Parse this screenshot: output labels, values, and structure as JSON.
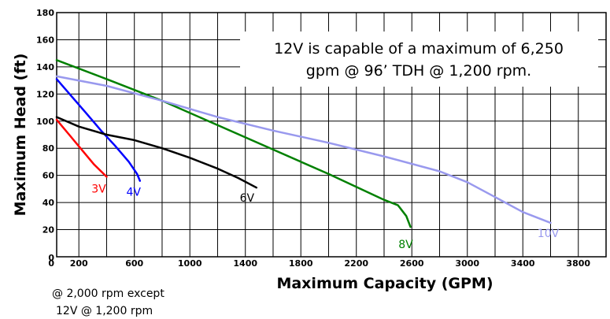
{
  "chart_data": {
    "type": "line",
    "title": "",
    "xlabel": "Maximum Capacity (GPM)",
    "ylabel": "Maximum Head (ft)",
    "xlim": [
      40,
      4000
    ],
    "ylim": [
      0,
      180
    ],
    "x_ticks": [
      "200",
      "600",
      "1000",
      "1400",
      "1800",
      "2200",
      "2600",
      "3000",
      "3400",
      "3800"
    ],
    "x_origin_label": "0",
    "y_ticks": [
      "180",
      "160",
      "140",
      "120",
      "100",
      "80",
      "60",
      "40",
      "20",
      "0"
    ],
    "grid": true,
    "annotation_lines": [
      "12V is capable of a maximum of 6,250",
      "gpm @ 96’ TDH @ 1,200 rpm."
    ],
    "footnote_lines": [
      "@ 2,000 rpm except",
      "12V @ 1,200 rpm"
    ],
    "series": [
      {
        "name": "3V",
        "color": "#ff0000",
        "x": [
          40,
          130,
          220,
          310,
          400
        ],
        "y": [
          101,
          90,
          79,
          68,
          59
        ]
      },
      {
        "name": "4V",
        "color": "#0000ff",
        "x": [
          40,
          150,
          260,
          360,
          460,
          560,
          620,
          640
        ],
        "y": [
          131,
          118,
          105,
          93,
          82,
          70,
          61,
          56
        ]
      },
      {
        "name": "6V",
        "color": "#000000",
        "x": [
          40,
          200,
          400,
          600,
          800,
          1000,
          1200,
          1350,
          1480
        ],
        "y": [
          103,
          96,
          90,
          86,
          80,
          73,
          65,
          58,
          51
        ]
      },
      {
        "name": "8V",
        "color": "#008000",
        "x": [
          40,
          400,
          800,
          1200,
          1600,
          2000,
          2400,
          2500,
          2560,
          2590
        ],
        "y": [
          145,
          131,
          115,
          97,
          79,
          61,
          42,
          38,
          30,
          22
        ]
      },
      {
        "name": "10V",
        "color": "#9999ee",
        "x": [
          40,
          400,
          800,
          1200,
          1600,
          2000,
          2400,
          2800,
          3000,
          3200,
          3400,
          3600
        ],
        "y": [
          133,
          126,
          115,
          103,
          93,
          84,
          74,
          63,
          55,
          44,
          33,
          25
        ]
      }
    ]
  }
}
